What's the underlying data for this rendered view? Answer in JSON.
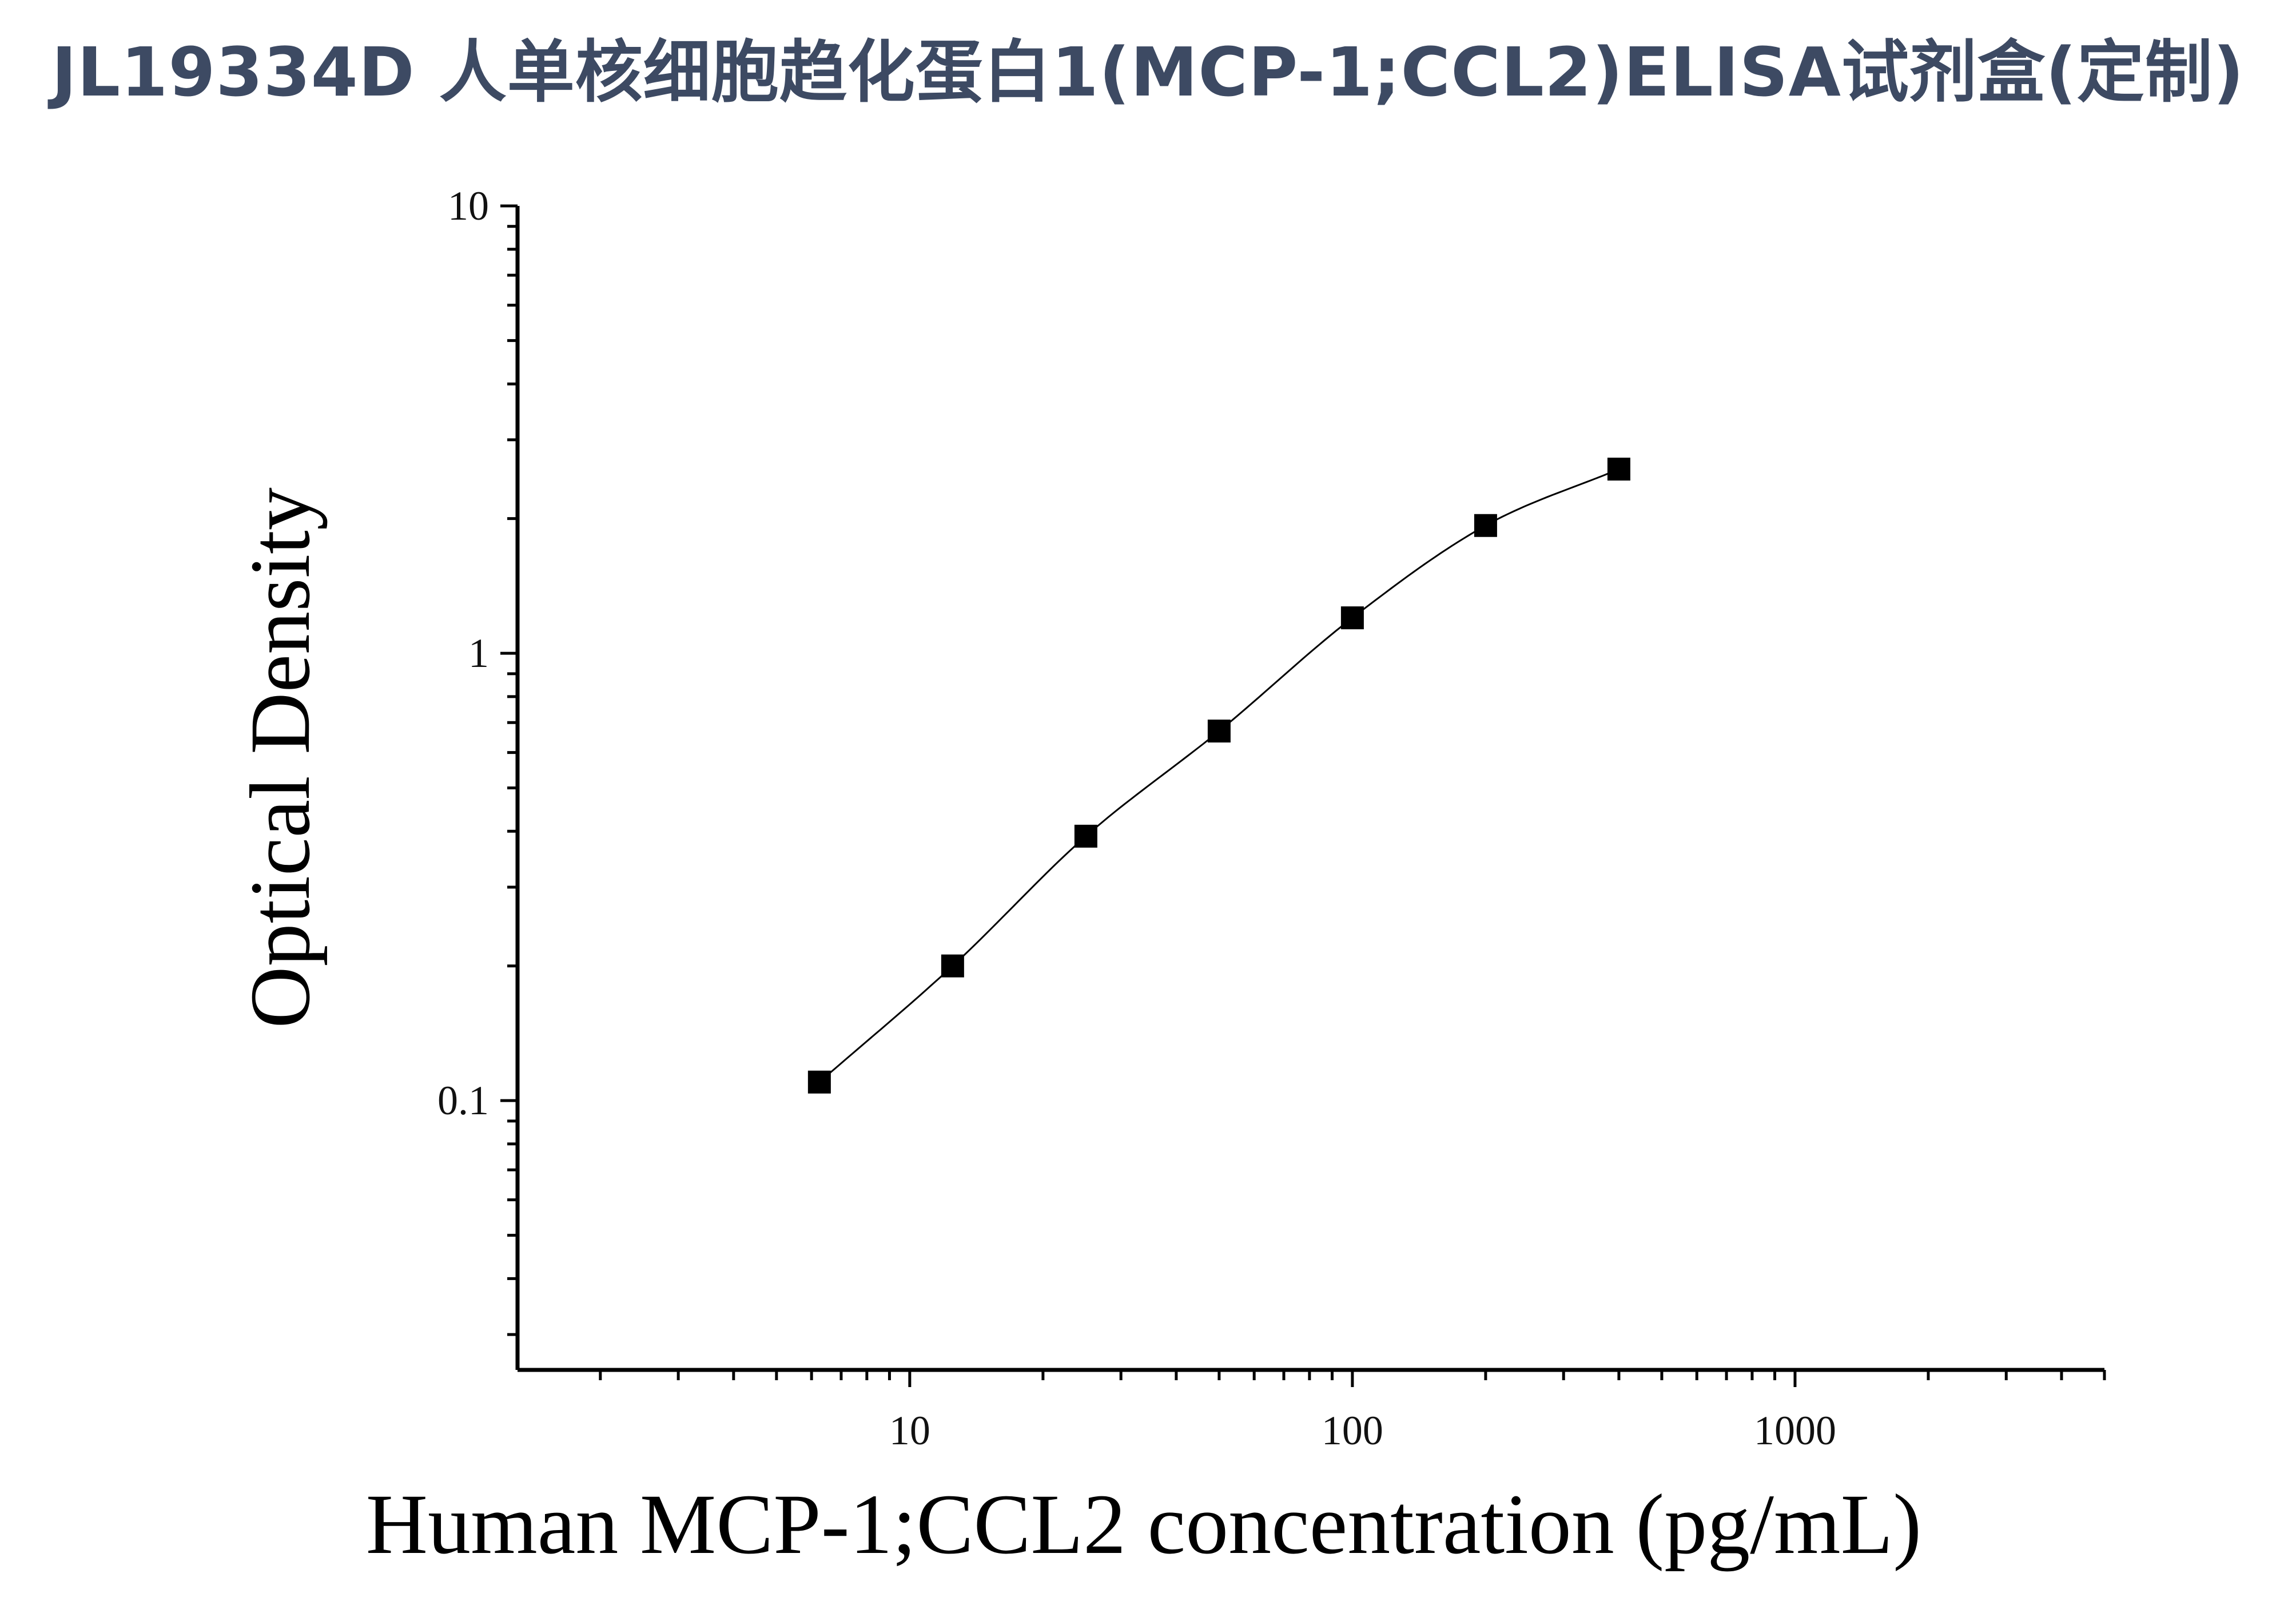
{
  "chart_data": {
    "type": "scatter",
    "title": "JL19334D 人单核细胞趋化蛋白1(MCP-1;CCL2)ELISA试剂盒(定制)",
    "xlabel": "Human MCP-1;CCL2 concentration (pg/mL)",
    "ylabel": "Optical Density",
    "x_scale": "log",
    "y_scale": "log",
    "xlim": [
      1.3,
      5000
    ],
    "ylim": [
      0.025,
      10
    ],
    "x_ticks": [
      "10",
      "100",
      "1000"
    ],
    "y_ticks": [
      "0.1",
      "1",
      "10"
    ],
    "grid": false,
    "series": [
      {
        "points": [
          {
            "x": 6.25,
            "y": 0.11
          },
          {
            "x": 12.5,
            "y": 0.2
          },
          {
            "x": 25,
            "y": 0.39
          },
          {
            "x": 50,
            "y": 0.67
          },
          {
            "x": 100,
            "y": 1.2
          },
          {
            "x": 200,
            "y": 1.93
          },
          {
            "x": 400,
            "y": 2.58
          }
        ],
        "marker": "square",
        "color": "#000000"
      }
    ],
    "fit_curve": {
      "type": "4PL",
      "color": "#000000"
    }
  }
}
